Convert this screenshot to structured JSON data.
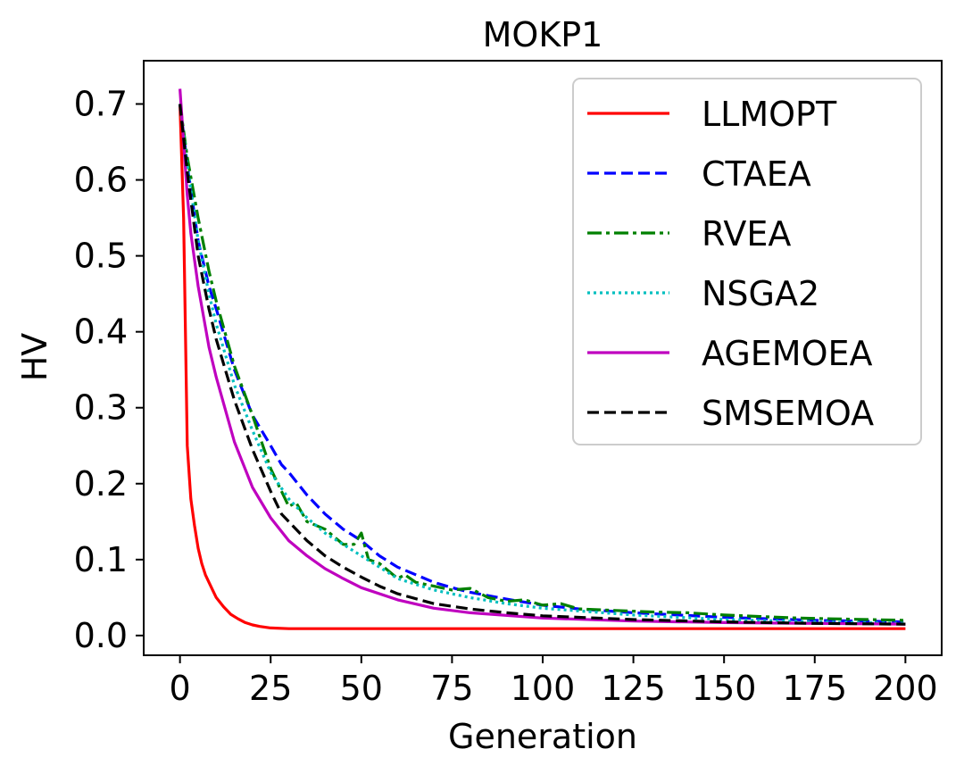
{
  "chart_data": {
    "type": "line",
    "title": "MOKP1",
    "xlabel": "Generation",
    "ylabel": "HV",
    "xlim": [
      -10,
      210
    ],
    "ylim": [
      -0.026,
      0.757
    ],
    "xticks": [
      0,
      25,
      50,
      75,
      100,
      125,
      150,
      175,
      200
    ],
    "yticks": [
      0.0,
      0.1,
      0.2,
      0.3,
      0.4,
      0.5,
      0.6,
      0.7
    ],
    "xtick_labels": [
      "0",
      "25",
      "50",
      "75",
      "100",
      "125",
      "150",
      "175",
      "200"
    ],
    "ytick_labels": [
      "0.0",
      "0.1",
      "0.2",
      "0.3",
      "0.4",
      "0.5",
      "0.6",
      "0.7"
    ],
    "grid": false,
    "legend_position": "top-right",
    "series": [
      {
        "name": "LLMOPT",
        "color": "#ff0000",
        "dash": "solid",
        "x": [
          0,
          1,
          2,
          3,
          4,
          5,
          6,
          7,
          8,
          9,
          10,
          12,
          14,
          16,
          18,
          20,
          22,
          25,
          30,
          40,
          60,
          100,
          150,
          200
        ],
        "y": [
          0.7,
          0.55,
          0.25,
          0.18,
          0.145,
          0.115,
          0.095,
          0.08,
          0.07,
          0.06,
          0.05,
          0.038,
          0.028,
          0.022,
          0.017,
          0.014,
          0.012,
          0.01,
          0.009,
          0.009,
          0.009,
          0.009,
          0.009,
          0.009
        ]
      },
      {
        "name": "CTAEA",
        "color": "#0000ff",
        "dash": "dashed",
        "x": [
          0,
          2,
          5,
          8,
          10,
          15,
          20,
          25,
          28,
          30,
          35,
          40,
          45,
          50,
          55,
          60,
          65,
          70,
          75,
          80,
          90,
          100,
          110,
          125,
          150,
          175,
          200
        ],
        "y": [
          0.7,
          0.62,
          0.52,
          0.46,
          0.43,
          0.35,
          0.29,
          0.25,
          0.225,
          0.215,
          0.185,
          0.16,
          0.14,
          0.125,
          0.105,
          0.09,
          0.08,
          0.07,
          0.063,
          0.057,
          0.048,
          0.04,
          0.035,
          0.03,
          0.024,
          0.02,
          0.018
        ]
      },
      {
        "name": "RVEA",
        "color": "#008000",
        "dash": "dashdot",
        "x": [
          0,
          2,
          5,
          8,
          10,
          15,
          20,
          25,
          28,
          30,
          32,
          35,
          40,
          45,
          48,
          50,
          52,
          55,
          60,
          62,
          65,
          70,
          75,
          80,
          85,
          90,
          95,
          100,
          105,
          110,
          120,
          130,
          140,
          150,
          160,
          170,
          180,
          190,
          200
        ],
        "y": [
          0.7,
          0.63,
          0.55,
          0.48,
          0.44,
          0.355,
          0.29,
          0.22,
          0.19,
          0.17,
          0.175,
          0.15,
          0.14,
          0.12,
          0.12,
          0.135,
          0.1,
          0.095,
          0.075,
          0.08,
          0.07,
          0.065,
          0.06,
          0.062,
          0.05,
          0.045,
          0.047,
          0.04,
          0.042,
          0.035,
          0.033,
          0.031,
          0.03,
          0.027,
          0.025,
          0.023,
          0.022,
          0.021,
          0.02
        ]
      },
      {
        "name": "NSGA2",
        "color": "#00bfbf",
        "dash": "dotted",
        "x": [
          0,
          2,
          5,
          8,
          10,
          15,
          20,
          25,
          30,
          35,
          40,
          45,
          50,
          55,
          60,
          70,
          80,
          90,
          100,
          125,
          150,
          175,
          200
        ],
        "y": [
          0.7,
          0.62,
          0.52,
          0.45,
          0.41,
          0.33,
          0.27,
          0.215,
          0.18,
          0.155,
          0.135,
          0.12,
          0.105,
          0.09,
          0.075,
          0.06,
          0.05,
          0.042,
          0.036,
          0.027,
          0.021,
          0.018,
          0.016
        ]
      },
      {
        "name": "AGEMOEA",
        "color": "#bf00bf",
        "dash": "solid",
        "x": [
          0,
          1,
          2,
          3,
          5,
          8,
          10,
          15,
          20,
          25,
          30,
          35,
          40,
          45,
          50,
          60,
          70,
          80,
          100,
          125,
          150,
          175,
          200
        ],
        "y": [
          0.72,
          0.65,
          0.58,
          0.53,
          0.46,
          0.38,
          0.34,
          0.255,
          0.195,
          0.155,
          0.125,
          0.105,
          0.088,
          0.075,
          0.063,
          0.047,
          0.036,
          0.03,
          0.023,
          0.019,
          0.017,
          0.016,
          0.015
        ]
      },
      {
        "name": "SMSEMOA",
        "color": "#000000",
        "dash": "dashed",
        "x": [
          0,
          2,
          5,
          8,
          10,
          15,
          20,
          25,
          28,
          30,
          35,
          40,
          45,
          50,
          55,
          60,
          70,
          80,
          90,
          100,
          125,
          150,
          175,
          200
        ],
        "y": [
          0.7,
          0.61,
          0.5,
          0.43,
          0.39,
          0.31,
          0.245,
          0.19,
          0.16,
          0.15,
          0.125,
          0.105,
          0.09,
          0.077,
          0.065,
          0.055,
          0.042,
          0.035,
          0.03,
          0.026,
          0.021,
          0.018,
          0.016,
          0.015
        ]
      }
    ]
  }
}
